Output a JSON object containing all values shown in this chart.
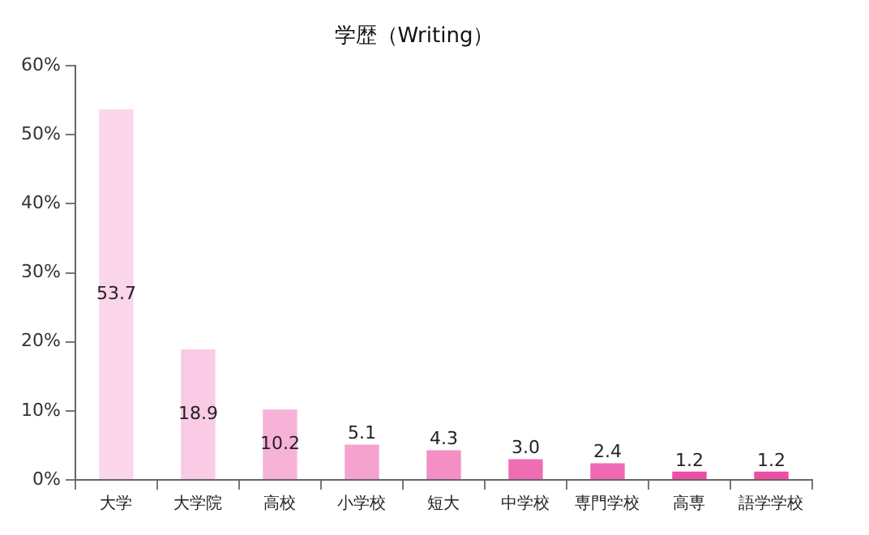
{
  "chart_data": {
    "type": "bar",
    "title": "学歴（Writing）",
    "categories": [
      "大学",
      "大学院",
      "高校",
      "小学校",
      "短大",
      "中学校",
      "専門学校",
      "高専",
      "語学学校"
    ],
    "values": [
      53.7,
      18.9,
      10.2,
      5.1,
      4.3,
      3.0,
      2.4,
      1.2,
      1.2
    ],
    "colors": [
      "#fbd6ea",
      "#f9cbe4",
      "#f7b2d8",
      "#f5a2ce",
      "#f38fc5",
      "#f06db4",
      "#ef6ab2",
      "#ec4fa4",
      "#ec4fa4"
    ],
    "ylim": [
      0,
      60
    ],
    "yticks": [
      {
        "value": 0,
        "label": "0%"
      },
      {
        "value": 10,
        "label": "10%"
      },
      {
        "value": 20,
        "label": "20%"
      },
      {
        "value": 30,
        "label": "30%"
      },
      {
        "value": 40,
        "label": "40%"
      },
      {
        "value": 50,
        "label": "50%"
      },
      {
        "value": 60,
        "label": "60%"
      }
    ],
    "value_labels": [
      "53.7",
      "18.9",
      "10.2",
      "5.1",
      "4.3",
      "3.0",
      "2.4",
      "1.2",
      "1.2"
    ],
    "grid": false,
    "legend": false
  }
}
